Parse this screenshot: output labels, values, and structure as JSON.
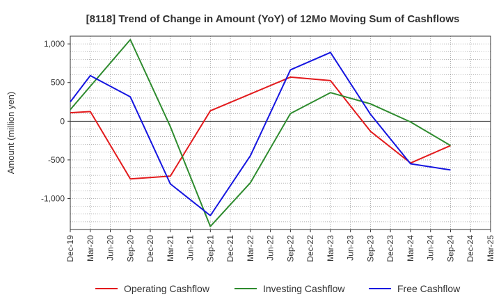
{
  "chart_data": {
    "type": "line",
    "title": "[8118]  Trend of Change in Amount (YoY) of 12Mo Moving Sum of Cashflows",
    "xlabel": "",
    "ylabel": "Amount (million yen)",
    "ylim": [
      -1400,
      1100
    ],
    "yticks": [
      1000,
      500,
      0,
      -500,
      -1000
    ],
    "ytick_labels": [
      "1,000",
      "500",
      "0",
      "-500",
      "-1,000"
    ],
    "categories": [
      "Dec-19",
      "Mar-20",
      "Jun-20",
      "Sep-20",
      "Dec-20",
      "Mar-21",
      "Jun-21",
      "Sep-21",
      "Dec-21",
      "Mar-22",
      "Jun-22",
      "Sep-22",
      "Dec-22",
      "Mar-23",
      "Jun-23",
      "Sep-23",
      "Dec-23",
      "Mar-24",
      "Jun-24",
      "Sep-24",
      "Dec-24",
      "Mar-25"
    ],
    "grid": true,
    "legend_position": "bottom",
    "series": [
      {
        "name": "Operating Cashflow",
        "color": "#e31a1c",
        "values": [
          110,
          125,
          null,
          -745,
          null,
          -710,
          null,
          135,
          null,
          null,
          null,
          570,
          null,
          525,
          null,
          -130,
          null,
          -540,
          null,
          -315,
          null,
          null
        ]
      },
      {
        "name": "Investing Cashflow",
        "color": "#2e8b2e",
        "values": [
          150,
          null,
          null,
          1055,
          null,
          -70,
          null,
          -1360,
          null,
          -795,
          null,
          100,
          null,
          370,
          null,
          225,
          null,
          -10,
          null,
          -315,
          null,
          null
        ]
      },
      {
        "name": "Free Cashflow",
        "color": "#1515e0",
        "values": [
          250,
          590,
          null,
          315,
          null,
          -810,
          null,
          -1220,
          null,
          -445,
          null,
          665,
          null,
          890,
          null,
          90,
          null,
          -550,
          null,
          -630,
          null,
          null
        ]
      }
    ]
  }
}
